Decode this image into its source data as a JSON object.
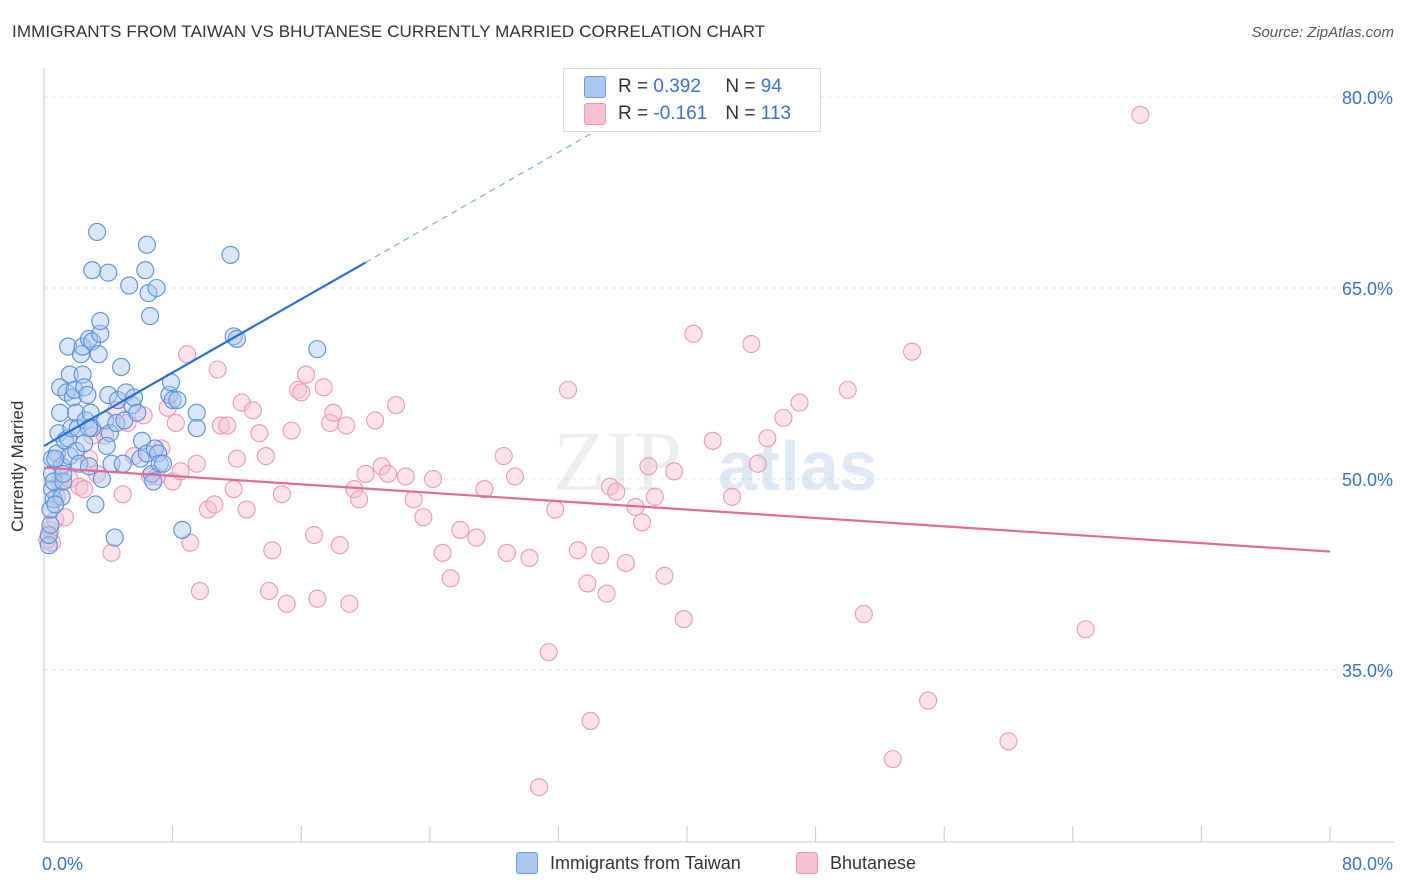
{
  "header": {
    "title": "IMMIGRANTS FROM TAIWAN VS BHUTANESE CURRENTLY MARRIED CORRELATION CHART",
    "source": "Source: ZipAtlas.com"
  },
  "watermark": {
    "zip": "ZIP",
    "atlas": "atlas"
  },
  "legend": {
    "rows": [
      {
        "r_label": "R =",
        "r_value": "0.392",
        "n_label": "N =",
        "n_value": "94",
        "color": "#a9c8f0",
        "border": "#6f9bd8"
      },
      {
        "r_label": "R =",
        "r_value": "-0.161",
        "n_label": "N =",
        "n_value": "113",
        "color": "#f7bfd2",
        "border": "#e79ab5"
      }
    ]
  },
  "bottom_legend": [
    {
      "label": "Immigrants from Taiwan",
      "color": "#a9c8f0",
      "border": "#6f9bd8"
    },
    {
      "label": "Bhutanese",
      "color": "#f7bfd2",
      "border": "#e79ab5"
    }
  ],
  "chart_data": {
    "type": "scatter",
    "title": "IMMIGRANTS FROM TAIWAN VS BHUTANESE CURRENTLY MARRIED CORRELATION CHART",
    "xlabel": "",
    "ylabel": "Currently Married",
    "xlim": [
      0,
      80
    ],
    "ylim": [
      20,
      82
    ],
    "x_tick_labels": [
      "0.0%",
      "80.0%"
    ],
    "y_ticks": [
      35,
      50,
      65,
      80
    ],
    "y_tick_labels": [
      "35.0%",
      "50.0%",
      "65.0%",
      "80.0%"
    ],
    "grid": true,
    "legend_position": "top-center",
    "colors": {
      "series1": "#4a86d8",
      "series2": "#e8769d",
      "trend1": "#2d6fcc",
      "trend2": "#e06a96",
      "tick_text": "#3a73c9"
    },
    "series": [
      {
        "name": "Immigrants from Taiwan",
        "trend": {
          "x_start": 0,
          "y_start": 52.6,
          "x_end": 20,
          "y_end": 67.0,
          "dash_x_end": 34,
          "dash_y_end": 77.1
        },
        "points": [
          [
            0.3,
            44.8
          ],
          [
            0.3,
            45.6
          ],
          [
            0.4,
            46.4
          ],
          [
            0.4,
            47.6
          ],
          [
            0.5,
            49.2
          ],
          [
            0.5,
            50.4
          ],
          [
            0.5,
            51.6
          ],
          [
            0.6,
            48.4
          ],
          [
            0.6,
            49.8
          ],
          [
            0.8,
            52.0
          ],
          [
            0.9,
            53.6
          ],
          [
            1.0,
            55.2
          ],
          [
            1.0,
            57.2
          ],
          [
            1.1,
            51.0
          ],
          [
            1.1,
            48.6
          ],
          [
            1.2,
            49.8
          ],
          [
            1.3,
            53.0
          ],
          [
            1.4,
            56.8
          ],
          [
            1.5,
            60.4
          ],
          [
            1.5,
            53.2
          ],
          [
            1.6,
            58.2
          ],
          [
            1.6,
            51.8
          ],
          [
            1.7,
            54.0
          ],
          [
            1.8,
            56.4
          ],
          [
            1.9,
            57.0
          ],
          [
            2.0,
            55.2
          ],
          [
            2.0,
            52.2
          ],
          [
            2.1,
            54.0
          ],
          [
            2.2,
            51.2
          ],
          [
            2.3,
            59.8
          ],
          [
            2.4,
            60.4
          ],
          [
            2.4,
            58.2
          ],
          [
            2.5,
            57.2
          ],
          [
            2.5,
            52.8
          ],
          [
            2.6,
            54.6
          ],
          [
            2.7,
            56.6
          ],
          [
            2.8,
            61.0
          ],
          [
            2.8,
            51.0
          ],
          [
            2.9,
            55.2
          ],
          [
            3.0,
            60.8
          ],
          [
            3.0,
            66.4
          ],
          [
            3.0,
            54.0
          ],
          [
            3.2,
            48.0
          ],
          [
            3.3,
            69.4
          ],
          [
            3.4,
            59.8
          ],
          [
            3.5,
            61.4
          ],
          [
            3.5,
            62.4
          ],
          [
            3.6,
            50.0
          ],
          [
            3.8,
            54.6
          ],
          [
            4.0,
            66.2
          ],
          [
            4.0,
            56.6
          ],
          [
            4.1,
            53.6
          ],
          [
            4.2,
            51.2
          ],
          [
            4.4,
            45.4
          ],
          [
            4.5,
            54.4
          ],
          [
            4.6,
            56.2
          ],
          [
            4.8,
            58.8
          ],
          [
            4.9,
            51.2
          ],
          [
            5.0,
            54.6
          ],
          [
            5.1,
            56.8
          ],
          [
            5.3,
            65.2
          ],
          [
            5.5,
            55.8
          ],
          [
            5.6,
            56.4
          ],
          [
            5.8,
            55.2
          ],
          [
            6.0,
            51.6
          ],
          [
            6.1,
            53.0
          ],
          [
            6.3,
            66.4
          ],
          [
            6.4,
            68.4
          ],
          [
            6.4,
            52.0
          ],
          [
            6.5,
            64.6
          ],
          [
            6.6,
            62.8
          ],
          [
            6.7,
            50.4
          ],
          [
            6.8,
            49.8
          ],
          [
            6.9,
            52.4
          ],
          [
            7.0,
            65.0
          ],
          [
            7.1,
            52.0
          ],
          [
            7.2,
            51.2
          ],
          [
            7.4,
            51.2
          ],
          [
            7.8,
            56.6
          ],
          [
            7.9,
            57.6
          ],
          [
            8.0,
            56.2
          ],
          [
            8.3,
            56.2
          ],
          [
            8.6,
            46.0
          ],
          [
            9.5,
            55.2
          ],
          [
            9.5,
            54.0
          ],
          [
            11.6,
            67.6
          ],
          [
            11.8,
            61.2
          ],
          [
            12.0,
            61.0
          ],
          [
            17.0,
            60.2
          ],
          [
            0.7,
            48.0
          ],
          [
            0.7,
            51.6
          ],
          [
            1.2,
            50.4
          ],
          [
            2.8,
            54.0
          ],
          [
            3.9,
            52.6
          ]
        ]
      },
      {
        "name": "Bhutanese",
        "trend": {
          "x_start": 0,
          "y_start": 50.9,
          "x_end": 80,
          "y_end": 44.3
        },
        "points": [
          [
            0.2,
            45.2
          ],
          [
            0.4,
            46.0
          ],
          [
            0.5,
            45.0
          ],
          [
            0.7,
            46.8
          ],
          [
            0.8,
            48.6
          ],
          [
            1.0,
            49.8
          ],
          [
            1.3,
            47.0
          ],
          [
            1.6,
            50.0
          ],
          [
            2.2,
            49.4
          ],
          [
            2.5,
            49.2
          ],
          [
            2.8,
            51.6
          ],
          [
            3.0,
            53.4
          ],
          [
            3.3,
            50.4
          ],
          [
            3.8,
            53.4
          ],
          [
            4.2,
            44.2
          ],
          [
            4.5,
            55.4
          ],
          [
            4.9,
            48.8
          ],
          [
            5.2,
            54.4
          ],
          [
            5.6,
            51.8
          ],
          [
            6.2,
            55.0
          ],
          [
            6.6,
            50.2
          ],
          [
            7.0,
            50.2
          ],
          [
            7.3,
            52.4
          ],
          [
            7.7,
            55.6
          ],
          [
            8.0,
            49.8
          ],
          [
            8.2,
            54.4
          ],
          [
            8.5,
            50.6
          ],
          [
            8.9,
            59.8
          ],
          [
            9.1,
            45.0
          ],
          [
            9.5,
            51.2
          ],
          [
            9.7,
            41.2
          ],
          [
            10.2,
            47.6
          ],
          [
            10.6,
            48.0
          ],
          [
            10.8,
            58.6
          ],
          [
            11.0,
            54.2
          ],
          [
            11.4,
            54.2
          ],
          [
            11.8,
            49.2
          ],
          [
            12.0,
            51.6
          ],
          [
            12.3,
            56.0
          ],
          [
            12.6,
            47.6
          ],
          [
            13.0,
            55.4
          ],
          [
            13.4,
            53.6
          ],
          [
            13.8,
            51.8
          ],
          [
            14.0,
            41.2
          ],
          [
            14.2,
            44.4
          ],
          [
            14.8,
            48.8
          ],
          [
            15.1,
            40.2
          ],
          [
            15.4,
            53.8
          ],
          [
            15.8,
            57.0
          ],
          [
            16.0,
            56.8
          ],
          [
            16.3,
            58.2
          ],
          [
            16.8,
            45.6
          ],
          [
            17.0,
            40.6
          ],
          [
            17.4,
            57.2
          ],
          [
            17.8,
            54.4
          ],
          [
            18.0,
            55.2
          ],
          [
            18.4,
            44.8
          ],
          [
            18.8,
            54.2
          ],
          [
            19.0,
            40.2
          ],
          [
            19.3,
            49.2
          ],
          [
            19.6,
            48.4
          ],
          [
            20.0,
            50.4
          ],
          [
            20.6,
            54.6
          ],
          [
            21.0,
            51.0
          ],
          [
            21.4,
            50.4
          ],
          [
            21.9,
            55.8
          ],
          [
            22.5,
            50.2
          ],
          [
            23.0,
            48.4
          ],
          [
            23.6,
            47.0
          ],
          [
            24.2,
            50.0
          ],
          [
            24.8,
            44.2
          ],
          [
            25.3,
            42.2
          ],
          [
            25.9,
            46.0
          ],
          [
            26.9,
            45.4
          ],
          [
            27.4,
            49.2
          ],
          [
            28.6,
            51.8
          ],
          [
            28.8,
            44.2
          ],
          [
            29.3,
            50.2
          ],
          [
            30.2,
            43.8
          ],
          [
            30.8,
            25.8
          ],
          [
            31.4,
            36.4
          ],
          [
            31.8,
            47.6
          ],
          [
            32.6,
            57.0
          ],
          [
            33.2,
            44.4
          ],
          [
            33.8,
            41.8
          ],
          [
            34.0,
            31.0
          ],
          [
            34.6,
            44.0
          ],
          [
            35.0,
            41.0
          ],
          [
            35.2,
            49.4
          ],
          [
            35.6,
            49.0
          ],
          [
            36.2,
            43.4
          ],
          [
            36.8,
            47.8
          ],
          [
            37.2,
            46.6
          ],
          [
            37.6,
            51.0
          ],
          [
            38.0,
            48.6
          ],
          [
            38.6,
            42.4
          ],
          [
            39.2,
            50.6
          ],
          [
            39.8,
            39.0
          ],
          [
            40.4,
            61.4
          ],
          [
            41.6,
            53.0
          ],
          [
            42.8,
            48.6
          ],
          [
            44.0,
            60.6
          ],
          [
            44.4,
            51.2
          ],
          [
            45.0,
            53.2
          ],
          [
            46.0,
            54.8
          ],
          [
            47.0,
            56.0
          ],
          [
            50.0,
            57.0
          ],
          [
            51.0,
            39.4
          ],
          [
            52.8,
            28.0
          ],
          [
            54.0,
            60.0
          ],
          [
            55.0,
            32.6
          ],
          [
            60.0,
            29.4
          ],
          [
            64.8,
            38.2
          ],
          [
            68.2,
            78.6
          ]
        ]
      }
    ]
  }
}
